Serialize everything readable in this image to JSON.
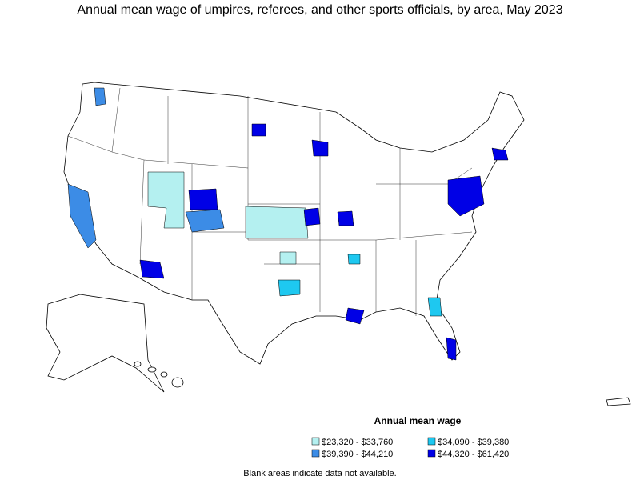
{
  "title": "Annual mean wage of umpires, referees, and other sports officials, by area, May 2023",
  "legend": {
    "title": "Annual mean wage",
    "items": [
      {
        "label": "$23,320 - $33,760",
        "color": "#b4f0f0"
      },
      {
        "label": "$34,090 - $39,380",
        "color": "#1ec8f0"
      },
      {
        "label": "$39,390 - $44,210",
        "color": "#3c8ce6"
      },
      {
        "label": "$44,320 - $61,420",
        "color": "#0000e6"
      }
    ]
  },
  "note": "Blank areas indicate data not available."
}
